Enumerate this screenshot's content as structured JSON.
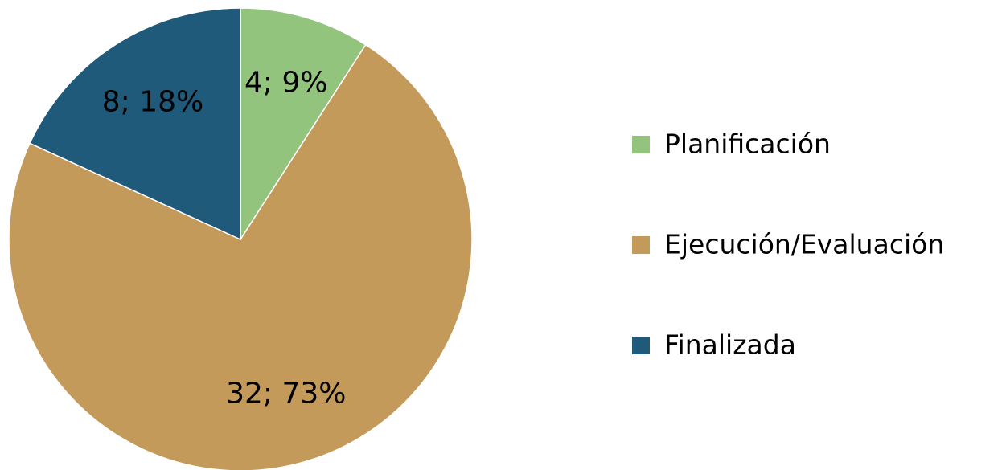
{
  "chart_data": {
    "type": "pie",
    "categories": [
      "Planificación",
      "Ejecución/Evaluación",
      "Finalizada"
    ],
    "values": [
      4,
      32,
      8
    ],
    "value_labels": [
      "4; 9%",
      "32; 73%",
      "8; 18%"
    ],
    "colors": [
      "#93c47d",
      "#c49a5b",
      "#1f5a7a"
    ],
    "legend": "right"
  }
}
